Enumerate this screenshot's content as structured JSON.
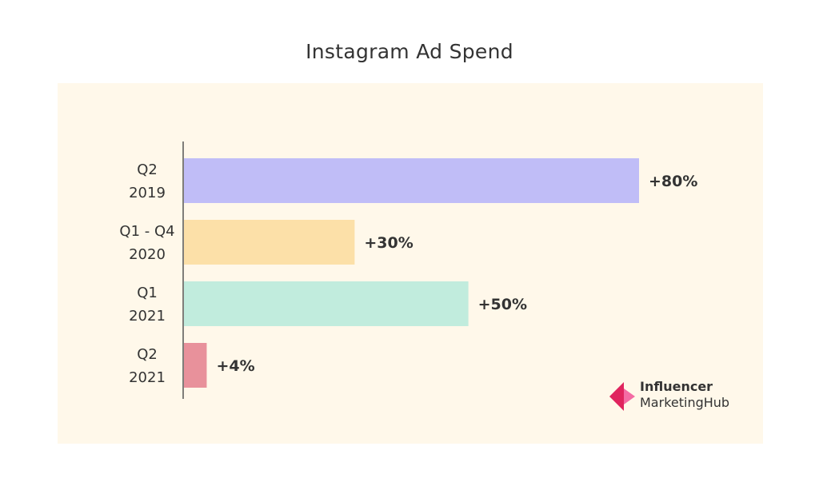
{
  "chart_data": {
    "type": "bar",
    "orientation": "horizontal",
    "title": "Instagram Ad Spend",
    "xlabel": "",
    "ylabel": "",
    "xlim": [
      0,
      80
    ],
    "categories": [
      {
        "line1": "Q2",
        "line2": "2019"
      },
      {
        "line1": "Q1 - Q4",
        "line2": "2020"
      },
      {
        "line1": "Q1",
        "line2": "2021"
      },
      {
        "line1": "Q2",
        "line2": "2021"
      }
    ],
    "values": [
      80,
      30,
      50,
      4
    ],
    "value_labels": [
      "+80%",
      "+30%",
      "+50%",
      "+4%"
    ],
    "colors": [
      "#c0bdf7",
      "#fce0a8",
      "#c1ecdd",
      "#e8919b"
    ]
  },
  "branding": {
    "line1": "Influencer",
    "line2": "MarketingHub",
    "colors": [
      "#e0245e",
      "#ff6b9d"
    ]
  }
}
